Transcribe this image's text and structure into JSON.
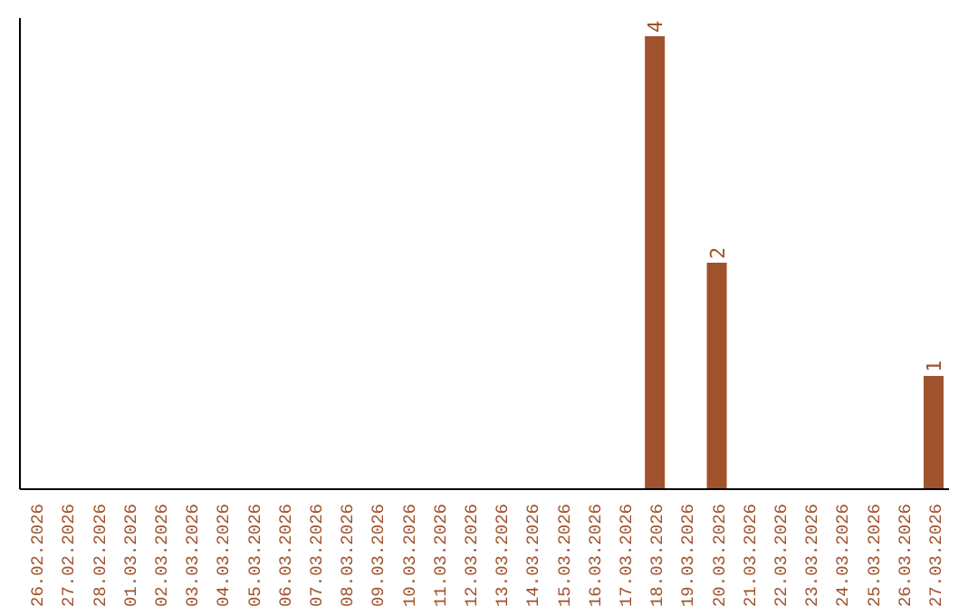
{
  "chart_data": {
    "type": "bar",
    "categories": [
      "26.02.2026",
      "27.02.2026",
      "28.02.2026",
      "01.03.2026",
      "02.03.2026",
      "03.03.2026",
      "04.03.2026",
      "05.03.2026",
      "06.03.2026",
      "07.03.2026",
      "08.03.2026",
      "09.03.2026",
      "10.03.2026",
      "11.03.2026",
      "12.03.2026",
      "13.03.2026",
      "14.03.2026",
      "15.03.2026",
      "16.03.2026",
      "17.03.2026",
      "18.03.2026",
      "19.03.2026",
      "20.03.2026",
      "21.03.2026",
      "22.03.2026",
      "23.03.2026",
      "24.03.2026",
      "25.03.2026",
      "26.03.2026",
      "27.03.2026"
    ],
    "values": [
      null,
      null,
      null,
      null,
      null,
      null,
      null,
      null,
      null,
      null,
      null,
      null,
      null,
      null,
      null,
      null,
      null,
      null,
      null,
      null,
      4,
      null,
      2,
      null,
      null,
      null,
      null,
      null,
      null,
      1
    ],
    "data_labels": true,
    "color": "#a0522d",
    "tick_labels": "x",
    "grid": false,
    "legend": false
  }
}
